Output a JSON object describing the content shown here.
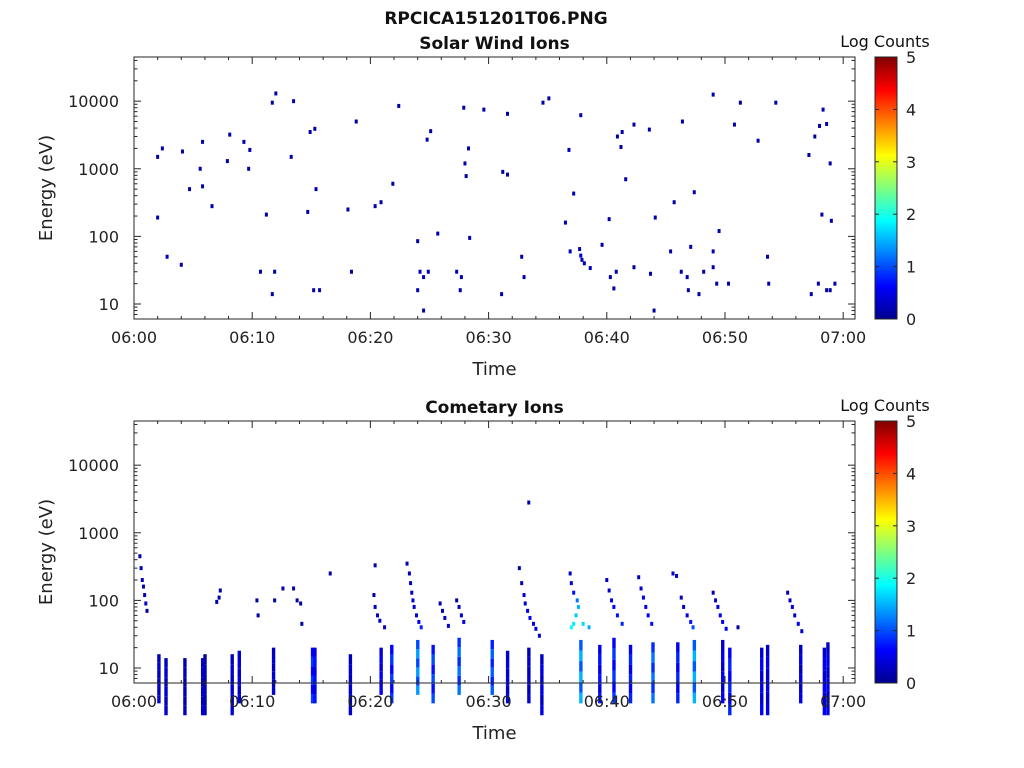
{
  "figure": {
    "title": "RPCICA151201T06.PNG"
  },
  "colors": {
    "low": "#00008f",
    "mid": "#00ffff",
    "high": "#800000"
  },
  "chart_data": [
    {
      "type": "heatmap",
      "title": "Solar Wind Ions",
      "xlabel": "Time",
      "ylabel": "Energy (eV)",
      "y_scale": "log",
      "xlim": [
        "06:00",
        "07:01"
      ],
      "ylim": [
        6,
        45000
      ],
      "x_ticks": [
        "06:00",
        "06:10",
        "06:20",
        "06:30",
        "06:40",
        "06:50",
        "07:00"
      ],
      "y_ticks": [
        {
          "value": 10,
          "label": "10"
        },
        {
          "value": 100,
          "label": "100"
        },
        {
          "value": 1000,
          "label": "1000"
        },
        {
          "value": 10000,
          "label": "10000"
        }
      ],
      "colorbar": {
        "label": "Log Counts",
        "range": [
          0,
          5
        ],
        "ticks": [
          "0",
          "1",
          "2",
          "3",
          "4",
          "5"
        ]
      },
      "points": [
        [
          2.0,
          1500,
          0.2
        ],
        [
          2.4,
          2000,
          0.2
        ],
        [
          4.1,
          1800,
          0.2
        ],
        [
          5.8,
          2500,
          0.2
        ],
        [
          8.1,
          3200,
          0.2
        ],
        [
          9.3,
          2500,
          0.2
        ],
        [
          9.8,
          1900,
          0.2
        ],
        [
          7.9,
          1300,
          0.2
        ],
        [
          11.7,
          9500,
          0.2
        ],
        [
          12.0,
          13000,
          0.2
        ],
        [
          13.5,
          10000,
          0.2
        ],
        [
          14.9,
          3500,
          0.2
        ],
        [
          15.3,
          3900,
          0.2
        ],
        [
          18.8,
          5000,
          0.2
        ],
        [
          13.3,
          1500,
          0.2
        ],
        [
          22.4,
          8500,
          0.2
        ],
        [
          24.8,
          2700,
          0.2
        ],
        [
          25.1,
          3600,
          0.2
        ],
        [
          27.9,
          8000,
          0.2
        ],
        [
          28.3,
          2000,
          0.2
        ],
        [
          28.0,
          1200,
          0.2
        ],
        [
          28.1,
          780,
          0.2
        ],
        [
          29.6,
          7500,
          0.2
        ],
        [
          31.6,
          6500,
          0.2
        ],
        [
          31.2,
          900,
          0.2
        ],
        [
          31.6,
          820,
          0.2
        ],
        [
          34.6,
          9500,
          0.2
        ],
        [
          35.1,
          11000,
          0.2
        ],
        [
          36.8,
          1900,
          0.2
        ],
        [
          37.8,
          6200,
          0.2
        ],
        [
          40.9,
          3000,
          0.2
        ],
        [
          41.3,
          3500,
          0.2
        ],
        [
          41.2,
          2100,
          0.2
        ],
        [
          42.3,
          4500,
          0.2
        ],
        [
          43.6,
          3800,
          0.2
        ],
        [
          46.4,
          5000,
          0.2
        ],
        [
          49.0,
          12500,
          0.2
        ],
        [
          50.8,
          4500,
          0.2
        ],
        [
          51.3,
          9500,
          0.2
        ],
        [
          54.3,
          9500,
          0.2
        ],
        [
          52.8,
          2600,
          0.2
        ],
        [
          58.0,
          4300,
          0.2
        ],
        [
          58.3,
          7500,
          0.2
        ],
        [
          58.6,
          4600,
          0.2
        ],
        [
          57.6,
          3000,
          0.2
        ],
        [
          57.1,
          1600,
          0.2
        ],
        [
          58.9,
          1200,
          0.2
        ],
        [
          4.7,
          500,
          0.2
        ],
        [
          5.8,
          550,
          0.2
        ],
        [
          5.6,
          1000,
          0.2
        ],
        [
          6.6,
          280,
          0.2
        ],
        [
          9.7,
          1000,
          0.2
        ],
        [
          15.4,
          500,
          0.2
        ],
        [
          14.7,
          230,
          0.2
        ],
        [
          18.1,
          250,
          0.2
        ],
        [
          20.4,
          280,
          0.2
        ],
        [
          20.9,
          320,
          0.2
        ],
        [
          21.9,
          600,
          0.2
        ],
        [
          37.2,
          430,
          0.2
        ],
        [
          41.6,
          700,
          0.2
        ],
        [
          45.7,
          320,
          0.2
        ],
        [
          47.4,
          450,
          0.2
        ],
        [
          58.2,
          210,
          0.2
        ],
        [
          59.0,
          170,
          0.2
        ],
        [
          2.0,
          190,
          0.2
        ],
        [
          11.2,
          210,
          0.2
        ],
        [
          36.5,
          160,
          0.2
        ],
        [
          40.2,
          180,
          0.2
        ],
        [
          44.1,
          190,
          0.2
        ],
        [
          24.0,
          85,
          0.2
        ],
        [
          25.7,
          110,
          0.2
        ],
        [
          28.4,
          95,
          0.2
        ],
        [
          39.6,
          75,
          0.2
        ],
        [
          49.5,
          120,
          0.2
        ],
        [
          2.8,
          50,
          0.3
        ],
        [
          4.0,
          38,
          0.2
        ],
        [
          36.9,
          60,
          0.3
        ],
        [
          37.7,
          65,
          0.3
        ],
        [
          37.8,
          52,
          0.4
        ],
        [
          37.9,
          45,
          0.3
        ],
        [
          38.1,
          40,
          0.3
        ],
        [
          38.6,
          34,
          0.3
        ],
        [
          32.8,
          50,
          0.3
        ],
        [
          45.4,
          60,
          0.2
        ],
        [
          47.1,
          70,
          0.2
        ],
        [
          49.0,
          60,
          0.2
        ],
        [
          53.6,
          50,
          0.2
        ],
        [
          10.7,
          30,
          0.2
        ],
        [
          11.9,
          30,
          0.2
        ],
        [
          18.4,
          30,
          0.2
        ],
        [
          24.2,
          30,
          0.3
        ],
        [
          24.5,
          25,
          0.3
        ],
        [
          24.9,
          30,
          0.3
        ],
        [
          27.3,
          30,
          0.3
        ],
        [
          27.7,
          25,
          0.3
        ],
        [
          33.0,
          25,
          0.2
        ],
        [
          40.3,
          25,
          0.2
        ],
        [
          40.8,
          30,
          0.2
        ],
        [
          42.3,
          35,
          0.2
        ],
        [
          43.7,
          28,
          0.2
        ],
        [
          46.3,
          30,
          0.2
        ],
        [
          46.8,
          25,
          0.2
        ],
        [
          48.2,
          30,
          0.2
        ],
        [
          49.0,
          35,
          0.2
        ],
        [
          57.9,
          20,
          0.2
        ],
        [
          59.3,
          20,
          0.2
        ],
        [
          11.7,
          14,
          0.2
        ],
        [
          15.2,
          16,
          0.2
        ],
        [
          15.7,
          16,
          0.2
        ],
        [
          24.0,
          16,
          0.3
        ],
        [
          24.5,
          8,
          0.2
        ],
        [
          27.6,
          16,
          0.2
        ],
        [
          31.1,
          14,
          0.2
        ],
        [
          40.6,
          17,
          0.2
        ],
        [
          44.0,
          8,
          0.2
        ],
        [
          46.9,
          16,
          0.2
        ],
        [
          47.8,
          14,
          0.2
        ],
        [
          49.3,
          20,
          0.2
        ],
        [
          50.3,
          20,
          0.2
        ],
        [
          53.7,
          20,
          0.2
        ],
        [
          57.3,
          14,
          0.2
        ],
        [
          58.6,
          16,
          0.2
        ],
        [
          58.9,
          16,
          0.2
        ]
      ]
    },
    {
      "type": "heatmap",
      "title": "Cometary Ions",
      "xlabel": "Time",
      "ylabel": "Energy (eV)",
      "y_scale": "log",
      "xlim": [
        "06:00",
        "07:01"
      ],
      "ylim": [
        6,
        45000
      ],
      "x_ticks": [
        "06:00",
        "06:10",
        "06:20",
        "06:30",
        "06:40",
        "06:50",
        "07:00"
      ],
      "y_ticks": [
        {
          "value": 10,
          "label": "10"
        },
        {
          "value": 100,
          "label": "100"
        },
        {
          "value": 1000,
          "label": "1000"
        },
        {
          "value": 10000,
          "label": "10000"
        }
      ],
      "colorbar": {
        "label": "Log Counts",
        "range": [
          0,
          5
        ],
        "ticks": [
          "0",
          "1",
          "2",
          "3",
          "4",
          "5"
        ]
      },
      "points": [
        [
          33.4,
          2800,
          0.2
        ],
        [
          20.4,
          330,
          0.2
        ],
        [
          16.6,
          250,
          0.2
        ],
        [
          0.5,
          450,
          0.2
        ],
        [
          0.6,
          300,
          0.3
        ],
        [
          0.7,
          200,
          0.3
        ],
        [
          0.8,
          160,
          0.3
        ],
        [
          0.9,
          120,
          0.3
        ],
        [
          1.0,
          90,
          0.3
        ],
        [
          1.1,
          70,
          0.2
        ],
        [
          7.3,
          140,
          0.2
        ],
        [
          7.2,
          110,
          0.2
        ],
        [
          7.0,
          95,
          0.2
        ],
        [
          10.4,
          100,
          0.2
        ],
        [
          10.5,
          60,
          0.2
        ],
        [
          11.9,
          100,
          0.2
        ],
        [
          12.6,
          150,
          0.2
        ],
        [
          13.5,
          150,
          0.2
        ],
        [
          13.8,
          100,
          0.2
        ],
        [
          14.1,
          90,
          0.2
        ],
        [
          14.2,
          45,
          0.2
        ],
        [
          20.3,
          120,
          0.2
        ],
        [
          20.4,
          80,
          0.3
        ],
        [
          20.6,
          60,
          0.3
        ],
        [
          20.8,
          50,
          0.3
        ],
        [
          21.2,
          40,
          0.3
        ],
        [
          23.1,
          350,
          0.2
        ],
        [
          23.3,
          250,
          0.3
        ],
        [
          23.4,
          180,
          0.3
        ],
        [
          23.5,
          130,
          0.3
        ],
        [
          23.6,
          100,
          0.4
        ],
        [
          23.7,
          80,
          0.4
        ],
        [
          23.9,
          60,
          0.5
        ],
        [
          24.1,
          48,
          0.6
        ],
        [
          24.3,
          40,
          0.8
        ],
        [
          25.9,
          90,
          0.2
        ],
        [
          26.1,
          70,
          0.3
        ],
        [
          26.3,
          55,
          0.3
        ],
        [
          26.6,
          42,
          0.4
        ],
        [
          27.3,
          100,
          0.2
        ],
        [
          27.5,
          80,
          0.3
        ],
        [
          27.7,
          60,
          0.4
        ],
        [
          27.9,
          48,
          0.5
        ],
        [
          32.6,
          300,
          0.2
        ],
        [
          32.8,
          180,
          0.3
        ],
        [
          33.0,
          120,
          0.4
        ],
        [
          33.1,
          90,
          0.4
        ],
        [
          33.3,
          70,
          0.5
        ],
        [
          33.5,
          55,
          0.5
        ],
        [
          33.8,
          45,
          0.6
        ],
        [
          34.0,
          38,
          0.5
        ],
        [
          34.3,
          30,
          0.4
        ],
        [
          36.9,
          250,
          0.3
        ],
        [
          37.0,
          180,
          0.4
        ],
        [
          37.2,
          130,
          0.7
        ],
        [
          37.5,
          100,
          1.2
        ],
        [
          37.6,
          80,
          1.5
        ],
        [
          37.4,
          60,
          1.6
        ],
        [
          37.2,
          45,
          1.8
        ],
        [
          37.0,
          40,
          1.9
        ],
        [
          38.0,
          45,
          1.7
        ],
        [
          38.5,
          40,
          1.5
        ],
        [
          40.0,
          200,
          0.3
        ],
        [
          40.2,
          140,
          0.4
        ],
        [
          40.4,
          100,
          0.5
        ],
        [
          40.6,
          80,
          0.6
        ],
        [
          40.9,
          60,
          0.7
        ],
        [
          41.3,
          45,
          0.8
        ],
        [
          42.7,
          220,
          0.3
        ],
        [
          42.9,
          150,
          0.4
        ],
        [
          43.1,
          110,
          0.5
        ],
        [
          43.3,
          80,
          0.5
        ],
        [
          43.5,
          60,
          0.6
        ],
        [
          43.8,
          45,
          0.7
        ],
        [
          45.6,
          250,
          0.3
        ],
        [
          45.9,
          230,
          0.4
        ],
        [
          46.3,
          110,
          0.3
        ],
        [
          46.5,
          80,
          0.4
        ],
        [
          46.8,
          60,
          0.5
        ],
        [
          47.1,
          48,
          0.7
        ],
        [
          47.3,
          40,
          1.0
        ],
        [
          49.0,
          130,
          0.3
        ],
        [
          49.2,
          100,
          0.4
        ],
        [
          49.4,
          80,
          0.4
        ],
        [
          49.6,
          60,
          0.5
        ],
        [
          49.8,
          48,
          0.6
        ],
        [
          50.1,
          38,
          0.6
        ],
        [
          51.1,
          40,
          0.2
        ],
        [
          55.3,
          130,
          0.3
        ],
        [
          55.5,
          100,
          0.3
        ],
        [
          55.7,
          80,
          0.4
        ],
        [
          55.9,
          60,
          0.4
        ],
        [
          56.2,
          45,
          0.5
        ],
        [
          56.5,
          35,
          0.4
        ]
      ],
      "columns": [
        [
          2.1,
          3,
          16,
          0.4
        ],
        [
          2.7,
          2,
          14,
          0.4
        ],
        [
          4.3,
          2,
          14,
          0.3
        ],
        [
          5.8,
          2,
          14,
          0.4
        ],
        [
          6.0,
          2,
          16,
          0.3
        ],
        [
          8.3,
          2,
          16,
          0.4
        ],
        [
          8.9,
          3,
          18,
          0.5
        ],
        [
          11.8,
          4,
          20,
          0.4
        ],
        [
          15.1,
          3,
          20,
          0.9
        ],
        [
          15.3,
          3,
          20,
          0.7
        ],
        [
          18.3,
          2,
          16,
          0.4
        ],
        [
          20.9,
          4,
          20,
          0.6
        ],
        [
          21.8,
          3,
          22,
          0.9
        ],
        [
          24.0,
          4,
          26,
          1.4
        ],
        [
          25.3,
          3,
          22,
          1.0
        ],
        [
          27.5,
          4,
          28,
          1.2
        ],
        [
          30.3,
          4,
          26,
          1.1
        ],
        [
          31.6,
          3,
          18,
          0.5
        ],
        [
          33.4,
          3,
          20,
          0.4
        ],
        [
          34.5,
          2,
          16,
          0.5
        ],
        [
          37.8,
          3,
          26,
          1.5
        ],
        [
          39.4,
          3,
          22,
          0.7
        ],
        [
          40.6,
          3,
          28,
          0.9
        ],
        [
          42.0,
          3,
          22,
          0.8
        ],
        [
          43.9,
          3,
          24,
          1.2
        ],
        [
          46.0,
          3,
          24,
          0.8
        ],
        [
          47.4,
          3,
          26,
          1.5
        ],
        [
          49.8,
          3,
          26,
          0.6
        ],
        [
          50.4,
          2,
          20,
          0.8
        ],
        [
          53.1,
          2,
          20,
          0.6
        ],
        [
          53.6,
          2,
          22,
          0.5
        ],
        [
          56.4,
          3,
          22,
          0.5
        ],
        [
          58.4,
          2,
          20,
          0.6
        ],
        [
          58.7,
          2,
          24,
          0.5
        ]
      ]
    }
  ]
}
